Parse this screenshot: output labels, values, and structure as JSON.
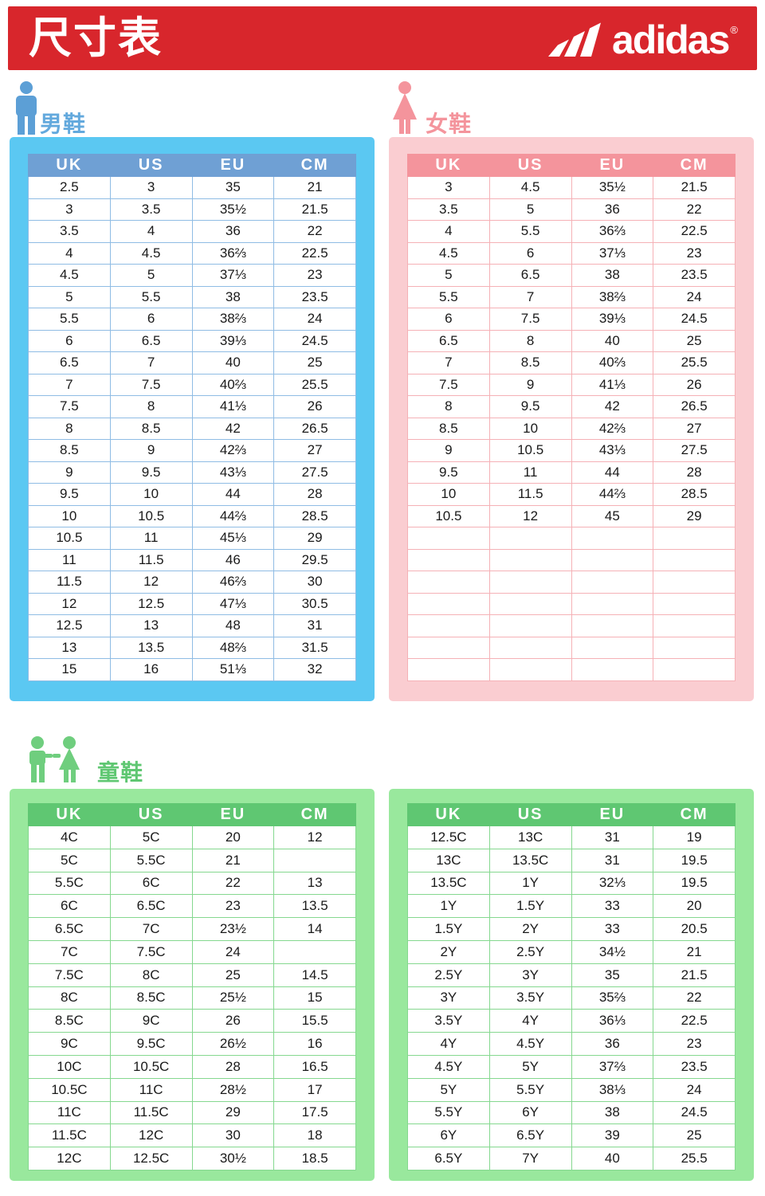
{
  "header": {
    "title": "尺寸表",
    "brand": "adidas",
    "registered_mark": "®"
  },
  "sections": {
    "men": {
      "label": "男鞋",
      "icon": "man-icon",
      "columns": [
        "UK",
        "US",
        "EU",
        "CM"
      ],
      "rows": [
        [
          "2.5",
          "3",
          "35",
          "21"
        ],
        [
          "3",
          "3.5",
          "35½",
          "21.5"
        ],
        [
          "3.5",
          "4",
          "36",
          "22"
        ],
        [
          "4",
          "4.5",
          "36⅔",
          "22.5"
        ],
        [
          "4.5",
          "5",
          "37⅓",
          "23"
        ],
        [
          "5",
          "5.5",
          "38",
          "23.5"
        ],
        [
          "5.5",
          "6",
          "38⅔",
          "24"
        ],
        [
          "6",
          "6.5",
          "39⅓",
          "24.5"
        ],
        [
          "6.5",
          "7",
          "40",
          "25"
        ],
        [
          "7",
          "7.5",
          "40⅔",
          "25.5"
        ],
        [
          "7.5",
          "8",
          "41⅓",
          "26"
        ],
        [
          "8",
          "8.5",
          "42",
          "26.5"
        ],
        [
          "8.5",
          "9",
          "42⅔",
          "27"
        ],
        [
          "9",
          "9.5",
          "43⅓",
          "27.5"
        ],
        [
          "9.5",
          "10",
          "44",
          "28"
        ],
        [
          "10",
          "10.5",
          "44⅔",
          "28.5"
        ],
        [
          "10.5",
          "11",
          "45⅓",
          "29"
        ],
        [
          "11",
          "11.5",
          "46",
          "29.5"
        ],
        [
          "11.5",
          "12",
          "46⅔",
          "30"
        ],
        [
          "12",
          "12.5",
          "47⅓",
          "30.5"
        ],
        [
          "12.5",
          "13",
          "48",
          "31"
        ],
        [
          "13",
          "13.5",
          "48⅔",
          "31.5"
        ],
        [
          "15",
          "16",
          "51⅓",
          "32"
        ]
      ]
    },
    "women": {
      "label": "女鞋",
      "icon": "woman-icon",
      "columns": [
        "UK",
        "US",
        "EU",
        "CM"
      ],
      "rows": [
        [
          "3",
          "4.5",
          "35½",
          "21.5"
        ],
        [
          "3.5",
          "5",
          "36",
          "22"
        ],
        [
          "4",
          "5.5",
          "36⅔",
          "22.5"
        ],
        [
          "4.5",
          "6",
          "37⅓",
          "23"
        ],
        [
          "5",
          "6.5",
          "38",
          "23.5"
        ],
        [
          "5.5",
          "7",
          "38⅔",
          "24"
        ],
        [
          "6",
          "7.5",
          "39⅓",
          "24.5"
        ],
        [
          "6.5",
          "8",
          "40",
          "25"
        ],
        [
          "7",
          "8.5",
          "40⅔",
          "25.5"
        ],
        [
          "7.5",
          "9",
          "41⅓",
          "26"
        ],
        [
          "8",
          "9.5",
          "42",
          "26.5"
        ],
        [
          "8.5",
          "10",
          "42⅔",
          "27"
        ],
        [
          "9",
          "10.5",
          "43⅓",
          "27.5"
        ],
        [
          "9.5",
          "11",
          "44",
          "28"
        ],
        [
          "10",
          "11.5",
          "44⅔",
          "28.5"
        ],
        [
          "10.5",
          "12",
          "45",
          "29"
        ],
        [
          "",
          "",
          "",
          ""
        ],
        [
          "",
          "",
          "",
          ""
        ],
        [
          "",
          "",
          "",
          ""
        ],
        [
          "",
          "",
          "",
          ""
        ],
        [
          "",
          "",
          "",
          ""
        ],
        [
          "",
          "",
          "",
          ""
        ],
        [
          "",
          "",
          "",
          ""
        ]
      ]
    },
    "kids": {
      "label": "童鞋",
      "icon": "children-icon",
      "left_table": {
        "columns": [
          "UK",
          "US",
          "EU",
          "CM"
        ],
        "rows": [
          [
            "4C",
            "5C",
            "20",
            "12"
          ],
          [
            "5C",
            "5.5C",
            "21",
            ""
          ],
          [
            "5.5C",
            "6C",
            "22",
            "13"
          ],
          [
            "6C",
            "6.5C",
            "23",
            "13.5"
          ],
          [
            "6.5C",
            "7C",
            "23½",
            "14"
          ],
          [
            "7C",
            "7.5C",
            "24",
            ""
          ],
          [
            "7.5C",
            "8C",
            "25",
            "14.5"
          ],
          [
            "8C",
            "8.5C",
            "25½",
            "15"
          ],
          [
            "8.5C",
            "9C",
            "26",
            "15.5"
          ],
          [
            "9C",
            "9.5C",
            "26½",
            "16"
          ],
          [
            "10C",
            "10.5C",
            "28",
            "16.5"
          ],
          [
            "10.5C",
            "11C",
            "28½",
            "17"
          ],
          [
            "11C",
            "11.5C",
            "29",
            "17.5"
          ],
          [
            "11.5C",
            "12C",
            "30",
            "18"
          ],
          [
            "12C",
            "12.5C",
            "30½",
            "18.5"
          ]
        ]
      },
      "right_table": {
        "columns": [
          "UK",
          "US",
          "EU",
          "CM"
        ],
        "rows": [
          [
            "12.5C",
            "13C",
            "31",
            "19"
          ],
          [
            "13C",
            "13.5C",
            "31",
            "19.5"
          ],
          [
            "13.5C",
            "1Y",
            "32⅓",
            "19.5"
          ],
          [
            "1Y",
            "1.5Y",
            "33",
            "20"
          ],
          [
            "1.5Y",
            "2Y",
            "33",
            "20.5"
          ],
          [
            "2Y",
            "2.5Y",
            "34½",
            "21"
          ],
          [
            "2.5Y",
            "3Y",
            "35",
            "21.5"
          ],
          [
            "3Y",
            "3.5Y",
            "35⅔",
            "22"
          ],
          [
            "3.5Y",
            "4Y",
            "36⅓",
            "22.5"
          ],
          [
            "4Y",
            "4.5Y",
            "36",
            "23"
          ],
          [
            "4.5Y",
            "5Y",
            "37⅔",
            "23.5"
          ],
          [
            "5Y",
            "5.5Y",
            "38⅓",
            "24"
          ],
          [
            "5.5Y",
            "6Y",
            "38",
            "24.5"
          ],
          [
            "6Y",
            "6.5Y",
            "39",
            "25"
          ],
          [
            "6.5Y",
            "7Y",
            "40",
            "25.5"
          ]
        ]
      }
    }
  },
  "colors": {
    "banner_red": "#D8262C",
    "men_frame": "#5BC8F2",
    "men_header": "#6FA0D4",
    "men_label": "#63A9DD",
    "women_frame": "#FACDD1",
    "women_header": "#F4949C",
    "women_label": "#F4949C",
    "kids_frame": "#99E89D",
    "kids_header": "#5FC772",
    "kids_label": "#5FC772"
  }
}
